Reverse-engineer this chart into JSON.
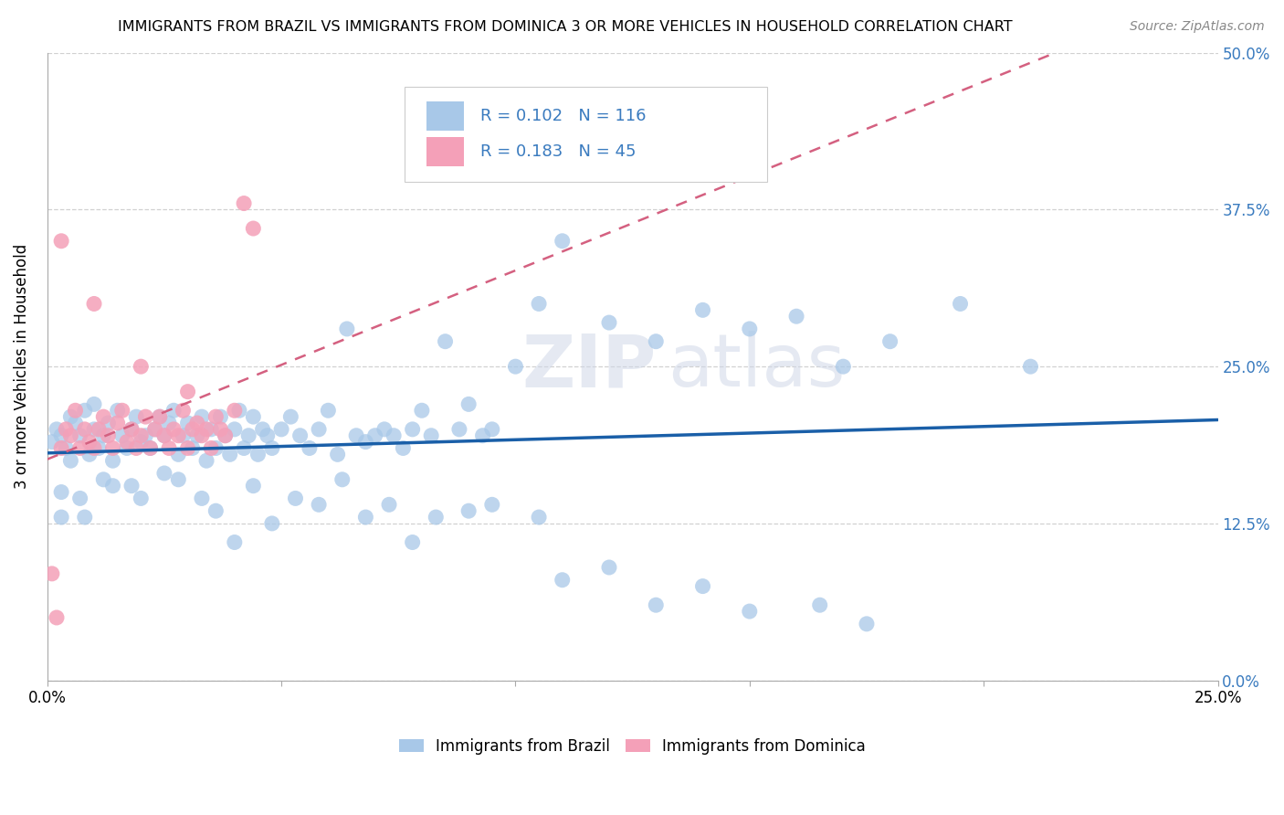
{
  "title": "IMMIGRANTS FROM BRAZIL VS IMMIGRANTS FROM DOMINICA 3 OR MORE VEHICLES IN HOUSEHOLD CORRELATION CHART",
  "source": "Source: ZipAtlas.com",
  "ylabel_label": "3 or more Vehicles in Household",
  "xlim": [
    0.0,
    0.25
  ],
  "ylim": [
    0.0,
    0.5
  ],
  "legend_label1": "Immigrants from Brazil",
  "legend_label2": "Immigrants from Dominica",
  "R1": "0.102",
  "N1": "116",
  "R2": "0.183",
  "N2": "45",
  "color_brazil": "#a8c8e8",
  "color_dominica": "#f4a0b8",
  "trendline_brazil": "#1a5fa8",
  "trendline_dominica": "#d46080",
  "watermark_zip": "ZIP",
  "watermark_atlas": "atlas",
  "brazil_x": [
    0.001,
    0.002,
    0.003,
    0.004,
    0.005,
    0.005,
    0.006,
    0.007,
    0.008,
    0.009,
    0.01,
    0.01,
    0.011,
    0.012,
    0.013,
    0.014,
    0.015,
    0.016,
    0.017,
    0.018,
    0.019,
    0.02,
    0.021,
    0.022,
    0.023,
    0.024,
    0.025,
    0.026,
    0.027,
    0.028,
    0.029,
    0.03,
    0.031,
    0.032,
    0.033,
    0.034,
    0.035,
    0.036,
    0.037,
    0.038,
    0.039,
    0.04,
    0.041,
    0.042,
    0.043,
    0.044,
    0.045,
    0.046,
    0.047,
    0.048,
    0.05,
    0.052,
    0.054,
    0.056,
    0.058,
    0.06,
    0.062,
    0.064,
    0.066,
    0.068,
    0.07,
    0.072,
    0.074,
    0.076,
    0.078,
    0.08,
    0.082,
    0.085,
    0.088,
    0.09,
    0.093,
    0.095,
    0.1,
    0.105,
    0.11,
    0.12,
    0.13,
    0.14,
    0.15,
    0.16,
    0.17,
    0.18,
    0.195,
    0.21,
    0.003,
    0.007,
    0.012,
    0.018,
    0.025,
    0.033,
    0.04,
    0.048,
    0.058,
    0.068,
    0.078,
    0.09,
    0.105,
    0.12,
    0.14,
    0.165,
    0.003,
    0.008,
    0.014,
    0.02,
    0.028,
    0.036,
    0.044,
    0.053,
    0.063,
    0.073,
    0.083,
    0.095,
    0.11,
    0.13,
    0.15,
    0.175
  ],
  "brazil_y": [
    0.19,
    0.2,
    0.195,
    0.185,
    0.21,
    0.175,
    0.205,
    0.195,
    0.215,
    0.18,
    0.2,
    0.22,
    0.185,
    0.195,
    0.205,
    0.175,
    0.215,
    0.195,
    0.185,
    0.2,
    0.21,
    0.19,
    0.195,
    0.185,
    0.2,
    0.21,
    0.195,
    0.205,
    0.215,
    0.18,
    0.195,
    0.205,
    0.185,
    0.195,
    0.21,
    0.175,
    0.2,
    0.185,
    0.21,
    0.195,
    0.18,
    0.2,
    0.215,
    0.185,
    0.195,
    0.21,
    0.18,
    0.2,
    0.195,
    0.185,
    0.2,
    0.21,
    0.195,
    0.185,
    0.2,
    0.215,
    0.18,
    0.28,
    0.195,
    0.19,
    0.195,
    0.2,
    0.195,
    0.185,
    0.2,
    0.215,
    0.195,
    0.27,
    0.2,
    0.22,
    0.195,
    0.2,
    0.25,
    0.3,
    0.35,
    0.285,
    0.27,
    0.295,
    0.28,
    0.29,
    0.25,
    0.27,
    0.3,
    0.25,
    0.15,
    0.145,
    0.16,
    0.155,
    0.165,
    0.145,
    0.11,
    0.125,
    0.14,
    0.13,
    0.11,
    0.135,
    0.13,
    0.09,
    0.075,
    0.06,
    0.13,
    0.13,
    0.155,
    0.145,
    0.16,
    0.135,
    0.155,
    0.145,
    0.16,
    0.14,
    0.13,
    0.14,
    0.08,
    0.06,
    0.055,
    0.045
  ],
  "dominica_x": [
    0.001,
    0.002,
    0.003,
    0.004,
    0.005,
    0.006,
    0.007,
    0.008,
    0.009,
    0.01,
    0.011,
    0.012,
    0.013,
    0.014,
    0.015,
    0.016,
    0.017,
    0.018,
    0.019,
    0.02,
    0.021,
    0.022,
    0.023,
    0.024,
    0.025,
    0.026,
    0.027,
    0.028,
    0.029,
    0.03,
    0.031,
    0.032,
    0.033,
    0.034,
    0.035,
    0.036,
    0.037,
    0.038,
    0.04,
    0.042,
    0.044,
    0.003,
    0.01,
    0.02,
    0.03
  ],
  "dominica_y": [
    0.085,
    0.05,
    0.185,
    0.2,
    0.195,
    0.215,
    0.185,
    0.2,
    0.19,
    0.185,
    0.2,
    0.21,
    0.195,
    0.185,
    0.205,
    0.215,
    0.19,
    0.2,
    0.185,
    0.195,
    0.21,
    0.185,
    0.2,
    0.21,
    0.195,
    0.185,
    0.2,
    0.195,
    0.215,
    0.185,
    0.2,
    0.205,
    0.195,
    0.2,
    0.185,
    0.21,
    0.2,
    0.195,
    0.215,
    0.38,
    0.36,
    0.35,
    0.3,
    0.25,
    0.23
  ]
}
